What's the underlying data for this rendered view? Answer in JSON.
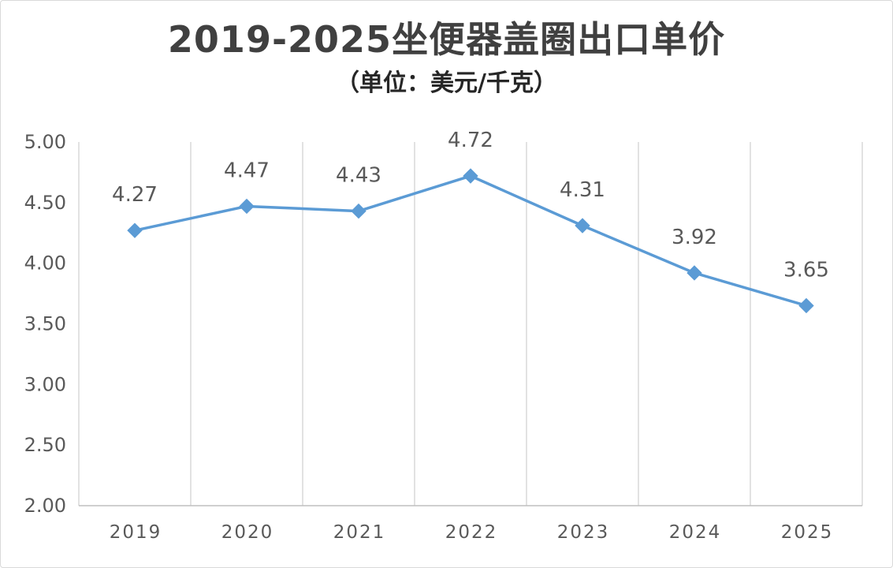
{
  "chart_data": {
    "type": "line",
    "title": "2019-2025坐便器盖圈出口单价",
    "subtitle": "（单位：美元/千克）",
    "categories": [
      "2019",
      "2020",
      "2021",
      "2022",
      "2023",
      "2024",
      "2025"
    ],
    "values": [
      4.27,
      4.47,
      4.43,
      4.72,
      4.31,
      3.92,
      3.65
    ],
    "ylim": [
      2,
      5
    ],
    "yticks": [
      2,
      2.5,
      3,
      3.5,
      4,
      4.5,
      5
    ],
    "ytick_labels": [
      "2.00",
      "2.50",
      "3.00",
      "3.50",
      "4.00",
      "4.50",
      "5.00"
    ],
    "xlabel": "",
    "ylabel": "",
    "grid": {
      "vertical": true,
      "horizontal": false
    },
    "marker": "diamond",
    "data_labels": "above",
    "legend": "none"
  },
  "colors": {
    "line": "#5B9BD5",
    "marker": "#5B9BD5",
    "text": "#595959",
    "title": "#404040",
    "grid": "#D9D9D9",
    "axis": "#BFBFBF"
  }
}
